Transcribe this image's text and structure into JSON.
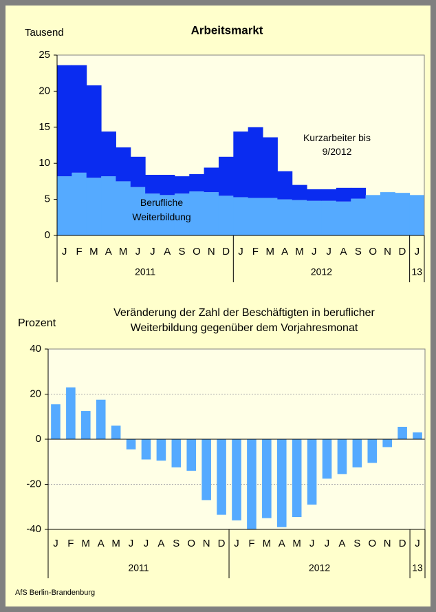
{
  "chart_data": [
    {
      "type": "stacked_bar",
      "title": "Arbeitsmarkt",
      "ylabel": "Tausend",
      "categories": [
        "J",
        "F",
        "M",
        "A",
        "M",
        "J",
        "J",
        "A",
        "S",
        "O",
        "N",
        "D",
        "J",
        "F",
        "M",
        "A",
        "M",
        "J",
        "J",
        "A",
        "S",
        "O",
        "N",
        "D",
        "J"
      ],
      "x_groups": [
        "2011",
        "2012",
        "13"
      ],
      "series": [
        {
          "name": "Berufliche Weiterbildung",
          "color": "#55aaff",
          "values": [
            8.2,
            8.7,
            8.0,
            8.2,
            7.5,
            6.7,
            5.8,
            5.6,
            5.8,
            6.1,
            6.0,
            5.5,
            5.3,
            5.2,
            5.2,
            5.0,
            4.9,
            4.8,
            4.8,
            4.7,
            5.1,
            5.6,
            6.0,
            5.9,
            5.6
          ]
        },
        {
          "name": "Kurzarbeiter bis 9/2012",
          "color": "#0a2cf0",
          "values": [
            15.4,
            14.9,
            12.8,
            6.2,
            4.7,
            4.2,
            2.6,
            2.8,
            2.4,
            2.4,
            3.4,
            5.4,
            9.1,
            9.8,
            8.4,
            3.9,
            2.1,
            1.6,
            1.6,
            1.9,
            1.5,
            null,
            null,
            null,
            null
          ]
        }
      ],
      "ylim": [
        0,
        25
      ],
      "yticks": [
        0,
        5,
        10,
        15,
        20,
        25
      ],
      "grid": false
    },
    {
      "type": "bar",
      "title": "Veränderung der Zahl der Beschäftigten in beruflicher Weiterbildung  gegenüber dem Vorjahresmonat",
      "ylabel": "Prozent",
      "categories": [
        "J",
        "F",
        "M",
        "A",
        "M",
        "J",
        "J",
        "A",
        "S",
        "O",
        "N",
        "D",
        "J",
        "F",
        "M",
        "A",
        "M",
        "J",
        "J",
        "A",
        "S",
        "O",
        "N",
        "D",
        "J"
      ],
      "x_groups": [
        "2011",
        "2012",
        "13"
      ],
      "values": [
        15.5,
        23,
        12.5,
        17.5,
        6,
        -4.5,
        -9,
        -9.5,
        -12.5,
        -14,
        -27,
        -33.5,
        -36,
        -40,
        -35,
        -39,
        -34.5,
        -29,
        -17.5,
        -15.5,
        -12.5,
        -10.5,
        -3.5,
        5.5,
        3
      ],
      "color": "#55aaff",
      "ylim": [
        -40,
        40
      ],
      "yticks": [
        -40,
        -20,
        0,
        20,
        40
      ],
      "grid": true
    }
  ],
  "source": "AfS Berlin-Brandenburg"
}
